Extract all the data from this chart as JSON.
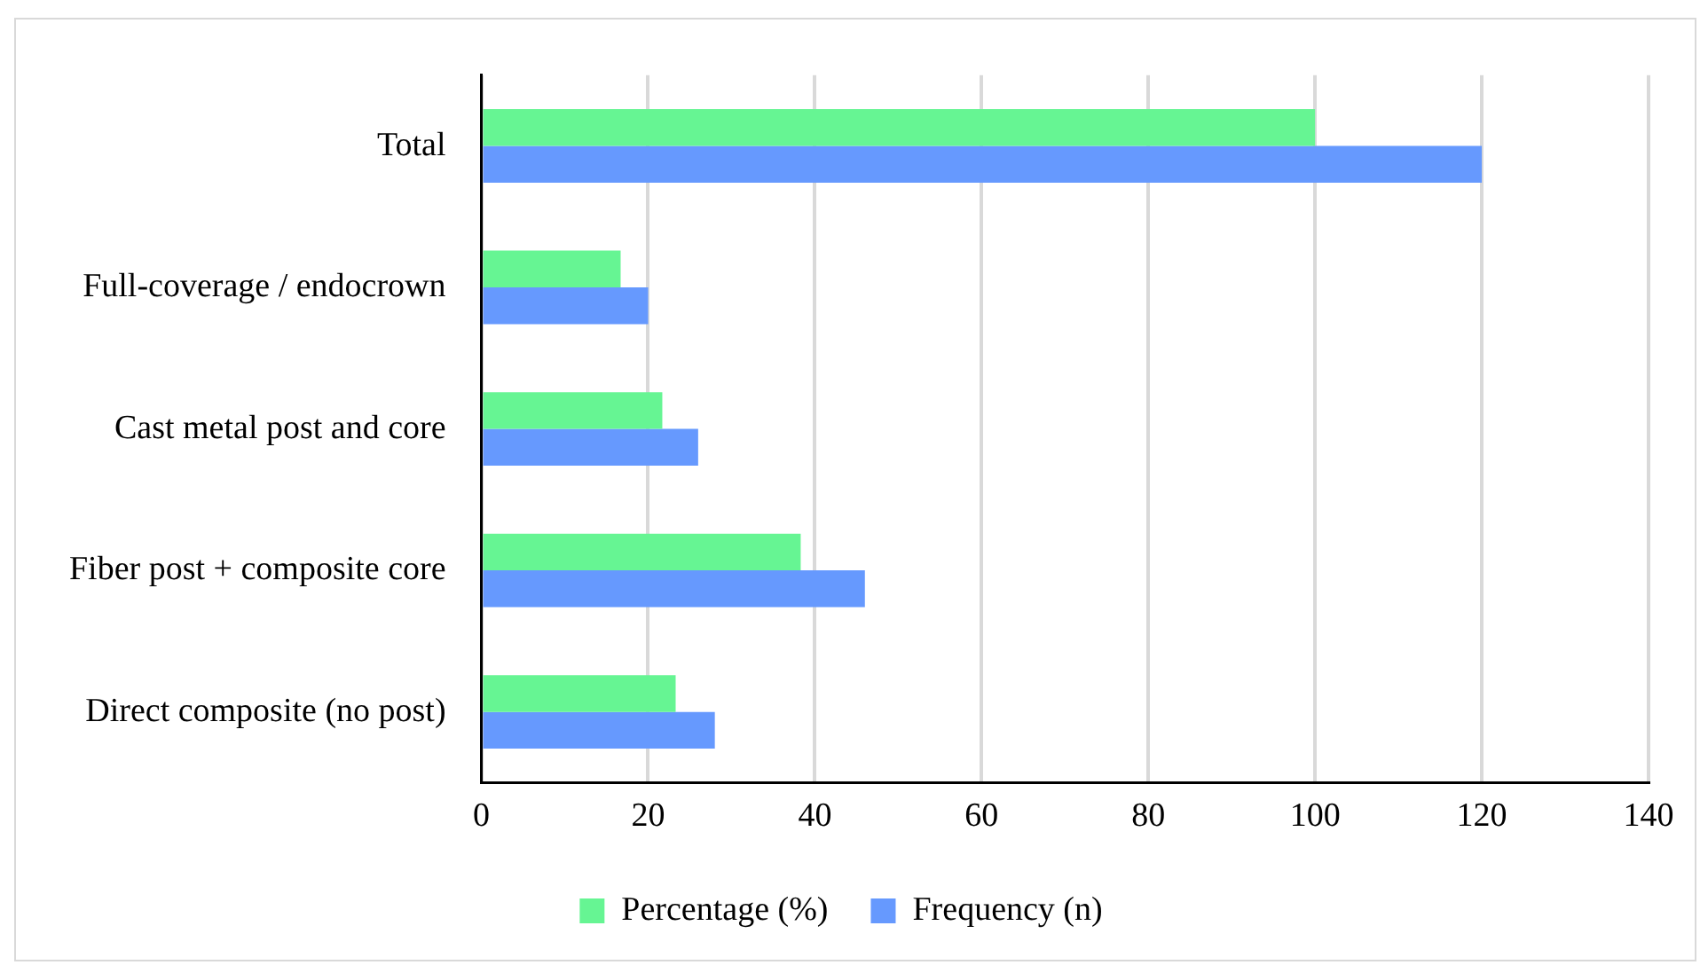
{
  "chart_data": {
    "type": "bar",
    "orientation": "horizontal",
    "categories": [
      "Total",
      "Full-coverage / endocrown",
      "Cast metal post and core",
      "Fiber post + composite core",
      "Direct composite (no post)"
    ],
    "series": [
      {
        "name": "Percentage (%)",
        "color": "#66f593",
        "values": [
          100,
          16.7,
          21.7,
          38.3,
          23.3
        ]
      },
      {
        "name": "Frequency (n)",
        "color": "#6699fe",
        "values": [
          120,
          20,
          26,
          46,
          28
        ]
      }
    ],
    "xlim": [
      0,
      140
    ],
    "xticks": [
      0,
      20,
      40,
      60,
      80,
      100,
      120,
      140
    ],
    "grid": "x",
    "legend": "bottom"
  }
}
